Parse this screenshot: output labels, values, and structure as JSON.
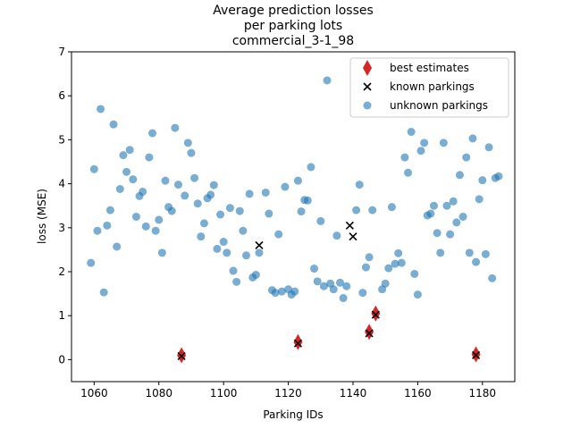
{
  "chart_data": {
    "type": "scatter",
    "title_lines": [
      "Average prediction losses",
      "per parking lots",
      "commercial_3-1_98"
    ],
    "xlabel": "Parking IDs",
    "ylabel": "loss (MSE)",
    "xlim": [
      1053,
      1190
    ],
    "ylim": [
      -0.5,
      7
    ],
    "xticks": [
      1060,
      1080,
      1100,
      1120,
      1140,
      1160,
      1180
    ],
    "yticks": [
      0,
      1,
      2,
      3,
      4,
      5,
      6,
      7
    ],
    "legend_position": "top-right",
    "colors": {
      "unknown": "#1f77b4",
      "best": "#d62728",
      "known": "#000000"
    },
    "series": [
      {
        "name": "unknown parkings",
        "marker": "circle",
        "points": [
          [
            1059,
            2.2
          ],
          [
            1060,
            4.33
          ],
          [
            1061,
            2.93
          ],
          [
            1062,
            5.7
          ],
          [
            1063,
            1.53
          ],
          [
            1064,
            3.05
          ],
          [
            1065,
            3.4
          ],
          [
            1066,
            5.35
          ],
          [
            1067,
            2.57
          ],
          [
            1068,
            3.88
          ],
          [
            1069,
            4.65
          ],
          [
            1070,
            4.27
          ],
          [
            1071,
            4.77
          ],
          [
            1072,
            4.1
          ],
          [
            1073,
            3.25
          ],
          [
            1074,
            3.72
          ],
          [
            1075,
            3.82
          ],
          [
            1076,
            3.03
          ],
          [
            1077,
            4.6
          ],
          [
            1078,
            5.15
          ],
          [
            1079,
            2.93
          ],
          [
            1080,
            3.18
          ],
          [
            1081,
            2.43
          ],
          [
            1082,
            4.07
          ],
          [
            1083,
            3.47
          ],
          [
            1084,
            3.38
          ],
          [
            1085,
            5.27
          ],
          [
            1086,
            3.98
          ],
          [
            1088,
            3.73
          ],
          [
            1089,
            4.93
          ],
          [
            1090,
            4.7
          ],
          [
            1091,
            4.13
          ],
          [
            1092,
            3.55
          ],
          [
            1093,
            2.8
          ],
          [
            1094,
            3.1
          ],
          [
            1095,
            3.67
          ],
          [
            1096,
            3.75
          ],
          [
            1097,
            3.97
          ],
          [
            1098,
            2.52
          ],
          [
            1099,
            3.3
          ],
          [
            1100,
            2.68
          ],
          [
            1101,
            2.43
          ],
          [
            1102,
            3.45
          ],
          [
            1103,
            2.02
          ],
          [
            1104,
            1.77
          ],
          [
            1105,
            3.38
          ],
          [
            1106,
            2.93
          ],
          [
            1107,
            2.37
          ],
          [
            1108,
            3.77
          ],
          [
            1109,
            1.87
          ],
          [
            1110,
            1.93
          ],
          [
            1111,
            2.43
          ],
          [
            1113,
            3.8
          ],
          [
            1114,
            3.32
          ],
          [
            1115,
            1.58
          ],
          [
            1116,
            1.52
          ],
          [
            1117,
            2.85
          ],
          [
            1118,
            1.55
          ],
          [
            1119,
            3.93
          ],
          [
            1120,
            1.6
          ],
          [
            1121,
            1.48
          ],
          [
            1122,
            1.55
          ],
          [
            1123,
            4.07
          ],
          [
            1124,
            3.37
          ],
          [
            1125,
            3.63
          ],
          [
            1126,
            3.62
          ],
          [
            1127,
            4.38
          ],
          [
            1128,
            2.07
          ],
          [
            1129,
            1.78
          ],
          [
            1130,
            3.15
          ],
          [
            1131,
            1.67
          ],
          [
            1132,
            6.35
          ],
          [
            1133,
            1.73
          ],
          [
            1134,
            1.6
          ],
          [
            1135,
            2.82
          ],
          [
            1136,
            1.75
          ],
          [
            1137,
            1.4
          ],
          [
            1138,
            1.67
          ],
          [
            1141,
            3.4
          ],
          [
            1142,
            3.98
          ],
          [
            1143,
            1.52
          ],
          [
            1144,
            2.1
          ],
          [
            1145,
            2.33
          ],
          [
            1146,
            3.4
          ],
          [
            1149,
            1.6
          ],
          [
            1150,
            1.73
          ],
          [
            1151,
            2.08
          ],
          [
            1152,
            3.47
          ],
          [
            1153,
            2.18
          ],
          [
            1154,
            2.42
          ],
          [
            1155,
            2.2
          ],
          [
            1156,
            4.6
          ],
          [
            1157,
            4.25
          ],
          [
            1158,
            5.18
          ],
          [
            1159,
            1.95
          ],
          [
            1160,
            1.48
          ],
          [
            1161,
            4.75
          ],
          [
            1162,
            4.93
          ],
          [
            1163,
            3.28
          ],
          [
            1164,
            3.32
          ],
          [
            1165,
            3.5
          ],
          [
            1166,
            2.88
          ],
          [
            1167,
            2.43
          ],
          [
            1168,
            4.93
          ],
          [
            1169,
            3.5
          ],
          [
            1170,
            2.85
          ],
          [
            1171,
            3.6
          ],
          [
            1172,
            3.12
          ],
          [
            1173,
            4.2
          ],
          [
            1174,
            3.25
          ],
          [
            1175,
            4.6
          ],
          [
            1176,
            2.43
          ],
          [
            1177,
            5.03
          ],
          [
            1178,
            2.22
          ],
          [
            1179,
            3.65
          ],
          [
            1180,
            4.08
          ],
          [
            1181,
            2.4
          ],
          [
            1182,
            4.83
          ],
          [
            1183,
            1.85
          ],
          [
            1184,
            4.13
          ],
          [
            1185,
            4.17
          ]
        ]
      },
      {
        "name": "best estimates",
        "marker": "thin_diamond",
        "points": [
          [
            1087,
            0.1
          ],
          [
            1123,
            0.4
          ],
          [
            1145,
            0.63
          ],
          [
            1147,
            1.05
          ],
          [
            1178,
            0.12
          ]
        ]
      },
      {
        "name": "known parkings",
        "marker": "x",
        "points": [
          [
            1087,
            0.08
          ],
          [
            1111,
            2.6
          ],
          [
            1123,
            0.37
          ],
          [
            1139,
            3.05
          ],
          [
            1140,
            2.8
          ],
          [
            1145,
            0.6
          ],
          [
            1147,
            1.02
          ],
          [
            1178,
            0.1
          ]
        ]
      }
    ],
    "legend_order": [
      "best estimates",
      "known parkings",
      "unknown parkings"
    ]
  }
}
